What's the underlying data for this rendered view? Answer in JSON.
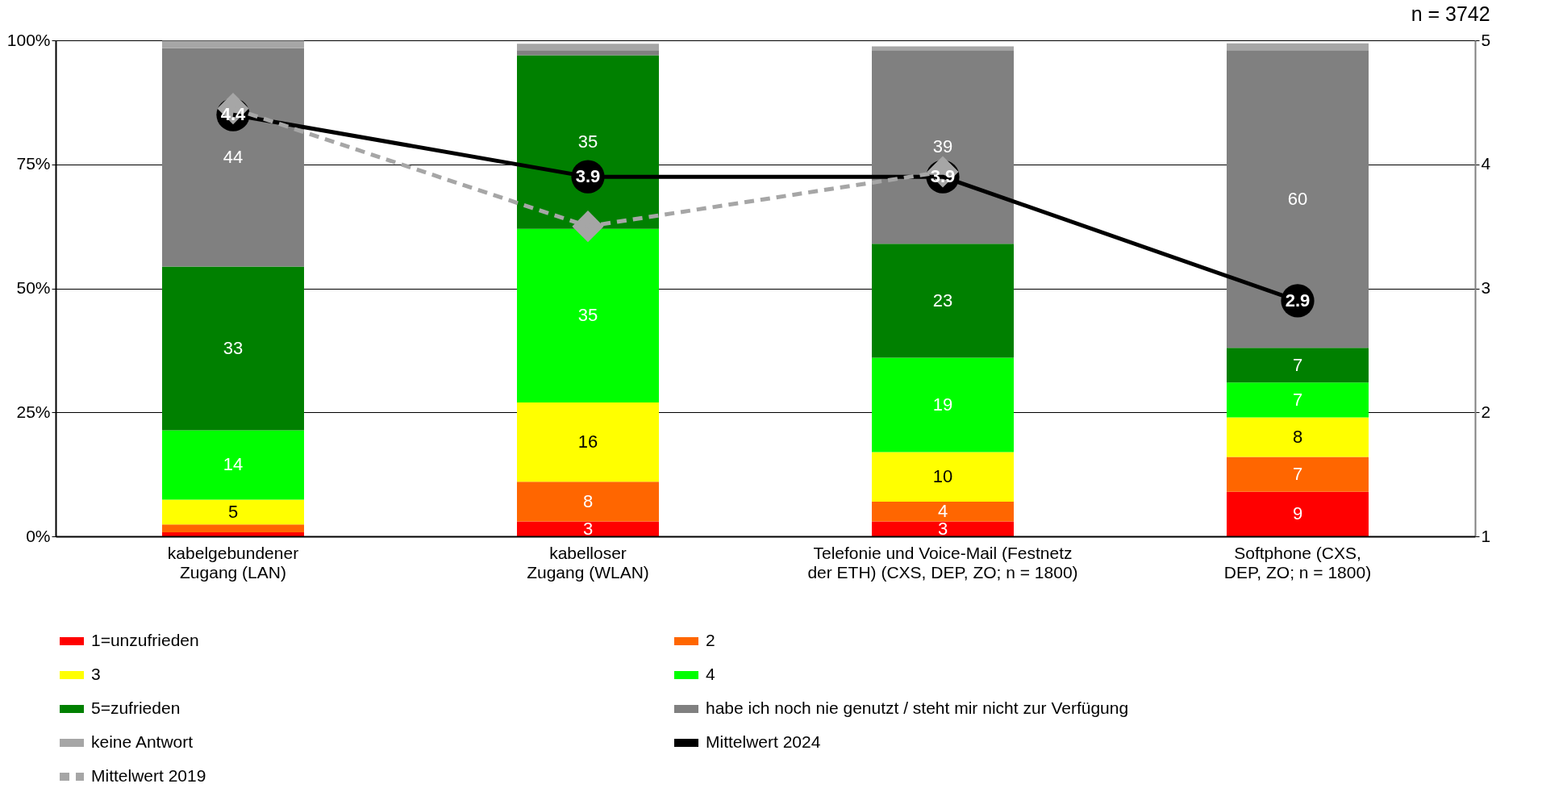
{
  "chart_data": {
    "type": "bar",
    "stacked": true,
    "categories": [
      "kabelgebundener Zugang (LAN)",
      "kabelloser Zugang (WLAN)",
      "Telefonie und Voice-Mail (Festnetz der ETH) (CXS, DEP, ZO; n = 1800)",
      "Softphone (CXS, DEP, ZO; n = 1800)"
    ],
    "series": [
      {
        "name": "1=unzufrieden",
        "color": "#ff0000",
        "values": [
          0.8,
          3,
          3,
          9
        ],
        "value_labels": [
          null,
          "3",
          "3",
          "9"
        ]
      },
      {
        "name": "2",
        "color": "#ff6600",
        "values": [
          1.6,
          8,
          4,
          7
        ],
        "value_labels": [
          null,
          "8",
          "4",
          "7"
        ]
      },
      {
        "name": "3",
        "color": "#ffff00",
        "values": [
          5,
          16,
          10,
          8
        ],
        "value_labels": [
          "5",
          "16",
          "10",
          "8"
        ]
      },
      {
        "name": "4",
        "color": "#00ff00",
        "values": [
          14,
          35,
          19,
          7
        ],
        "value_labels": [
          "14",
          "35",
          "19",
          "7"
        ]
      },
      {
        "name": "5=zufrieden",
        "color": "#008000",
        "values": [
          33,
          35,
          23,
          7
        ],
        "value_labels": [
          "33",
          "35",
          "23",
          "7"
        ]
      },
      {
        "name": "habe ich noch nie genutzt / steht mir nicht zur Verfügung",
        "color": "#808080",
        "values": [
          44,
          1,
          39,
          60
        ],
        "value_labels": [
          "44",
          null,
          "39",
          "60"
        ]
      },
      {
        "name": "keine Antwort",
        "color": "#a6a6a6",
        "values": [
          1.5,
          1.3,
          0.8,
          1.4
        ]
      },
      {
        "name": "Mittelwert 2024",
        "type": "line",
        "axis": "y2",
        "color": "#000000",
        "marker": "circle",
        "line_style": "solid",
        "values": [
          4.4,
          3.9,
          3.9,
          2.9
        ],
        "value_labels": [
          "4.4",
          "3.9",
          "3.9",
          "2.9"
        ]
      },
      {
        "name": "Mittelwert 2019",
        "type": "line",
        "axis": "y2",
        "color": "#a6a6a6",
        "marker": "diamond",
        "line_style": "dashed",
        "values": [
          4.45,
          3.5,
          3.94,
          null
        ]
      }
    ],
    "ylim": [
      0,
      100
    ],
    "yticks": [
      {
        "value": 0,
        "label": "0%"
      },
      {
        "value": 25,
        "label": "25%"
      },
      {
        "value": 50,
        "label": "50%"
      },
      {
        "value": 75,
        "label": "75%"
      },
      {
        "value": 100,
        "label": "100%"
      }
    ],
    "y2lim": [
      1,
      5
    ],
    "y2ticks": [
      1,
      2,
      3,
      4,
      5
    ],
    "grid": "y",
    "legend": "bottom",
    "annotations": [
      "n = 3742"
    ]
  }
}
